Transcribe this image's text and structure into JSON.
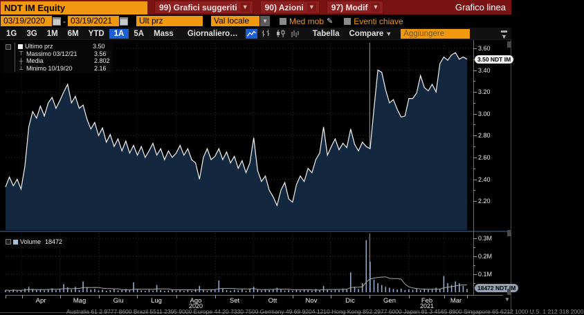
{
  "header": {
    "security": "NDT IM Equity",
    "menus": [
      {
        "label": "99) Grafici suggeriti"
      },
      {
        "label": "90) Azioni"
      },
      {
        "label": "97) Modif"
      }
    ],
    "chart_type": "Grafico linea"
  },
  "controls": {
    "date_from": "03/19/2020",
    "date_to": "03/19/2021",
    "field": "Ult prz",
    "currency": "Val locale",
    "mov_avg_label": "Med mob",
    "key_events_label": "Eventi chiave"
  },
  "toolbar": {
    "ranges": [
      "1G",
      "3G",
      "1M",
      "6M",
      "YTD",
      "1A",
      "5A",
      "Mass"
    ],
    "selected_range": "1A",
    "period": "Giornaliero…",
    "table_label": "Tabella",
    "compare_label": "Compare",
    "add_placeholder": "Aggiungere"
  },
  "legend": {
    "items": [
      {
        "marker": "square",
        "label": "Ultimo prz",
        "value": "3.50"
      },
      {
        "marker": "high",
        "label": "Massimo 03/12/21",
        "value": "3.56"
      },
      {
        "marker": "avg",
        "label": "Media",
        "value": "2.802"
      },
      {
        "marker": "low",
        "label": "Minimo 10/19/20",
        "value": "2.16"
      }
    ]
  },
  "volume_legend": {
    "label": "Volume",
    "value": "18472"
  },
  "price_axis": {
    "last_label": "3.50 NDT IM"
  },
  "volume_axis": {
    "tick_labels": [
      "0.3M",
      "0.2M",
      "0.1M"
    ],
    "last_label": "18472 NDT IM"
  },
  "footer": {
    "text": "Australia 61 2 9777 8600 Brazil 5511 2395 9000 Europe 44 20 7330 7500 Germany 49 69 9204 1210 Hong Kong 852 2977 6000 Japan 81 3 4565 8900 Singapore 65 6212 1000 U.S. 1 212 318 2000"
  },
  "colors": {
    "header_red": "#7a1414",
    "button_red": "#8c1f1f",
    "amber": "#f0980f",
    "selected_blue": "#1d5fd2",
    "area_fill": "#13273f",
    "price_line": "#f5f5f5",
    "volume_bar": "#8fabd0",
    "volume_ma": "#a8a8a8",
    "grid": "#323232",
    "year_line": "#9a9a9a"
  },
  "chart_data": {
    "type": "line",
    "title": "NDT IM Equity — Grafico linea (1A, Giornaliero)",
    "x_range": [
      "03/19/2020",
      "03/19/2021"
    ],
    "price_axis": {
      "min": 2.0,
      "max": 3.65,
      "major_ticks": [
        3.6,
        3.4,
        3.2,
        3.0,
        2.8,
        2.6,
        2.4,
        2.2
      ],
      "minor_step": 0.1
    },
    "volume_axis": {
      "min": 0,
      "max": 0.32,
      "major_ticks_m": [
        0.3,
        0.2,
        0.1
      ],
      "minor_ticks_m": [
        0.05,
        0.15,
        0.25
      ]
    },
    "stats": {
      "last": 3.5,
      "high_date": "03/12/21",
      "high": 3.56,
      "mean": 2.802,
      "low_date": "10/19/20",
      "low": 2.16,
      "last_volume": 18472
    },
    "months": [
      "Apr",
      "Mag",
      "Giu",
      "Lug",
      "Ago",
      "Set",
      "Ott",
      "Nov",
      "Dic",
      "Gen",
      "Feb",
      "Mar"
    ],
    "month_start_days": [
      13,
      43,
      74,
      104,
      135,
      166,
      196,
      227,
      257,
      288,
      319,
      347
    ],
    "days_total": 365,
    "year_separator_day": 288,
    "year_markers": [
      {
        "label": "2020",
        "month_index": 4
      },
      {
        "label": "2021",
        "month_index": 10
      }
    ],
    "price": [
      2.33,
      2.42,
      2.34,
      2.4,
      2.31,
      2.52,
      2.88,
      3.02,
      2.96,
      3.07,
      2.98,
      3.1,
      3.15,
      3.05,
      3.12,
      3.2,
      3.27,
      3.1,
      3.16,
      3.05,
      3.08,
      2.95,
      2.86,
      2.92,
      2.8,
      2.87,
      2.74,
      2.81,
      2.7,
      2.77,
      2.66,
      2.75,
      2.64,
      2.71,
      2.62,
      2.7,
      2.6,
      2.66,
      2.73,
      2.62,
      2.68,
      2.58,
      2.66,
      2.6,
      2.64,
      2.71,
      2.62,
      2.68,
      2.58,
      2.55,
      2.4,
      2.6,
      2.68,
      2.58,
      2.61,
      2.68,
      2.58,
      2.65,
      2.55,
      2.61,
      2.5,
      2.57,
      2.46,
      2.55,
      2.78,
      2.48,
      2.38,
      2.43,
      2.3,
      2.24,
      2.16,
      2.3,
      2.37,
      2.22,
      2.19,
      2.35,
      2.43,
      2.38,
      2.5,
      2.46,
      2.58,
      2.64,
      2.88,
      2.62,
      2.7,
      2.77,
      2.67,
      2.73,
      2.69,
      2.86,
      2.72,
      2.66,
      2.74,
      2.7,
      2.68,
      3.05,
      3.4,
      3.38,
      3.22,
      3.1,
      3.13,
      3.04,
      2.97,
      2.98,
      3.14,
      3.14,
      3.19,
      3.35,
      3.24,
      3.21,
      3.27,
      3.2,
      3.46,
      3.52,
      3.49,
      3.54,
      3.56,
      3.5,
      3.52,
      3.5
    ],
    "volume_m": [
      0.012,
      0.008,
      0.015,
      0.007,
      0.01,
      0.02,
      0.03,
      0.018,
      0.012,
      0.016,
      0.01,
      0.014,
      0.022,
      0.012,
      0.018,
      0.045,
      0.028,
      0.015,
      0.03,
      0.012,
      0.06,
      0.025,
      0.015,
      0.018,
      0.01,
      0.014,
      0.008,
      0.012,
      0.016,
      0.01,
      0.012,
      0.018,
      0.01,
      0.055,
      0.014,
      0.01,
      0.008,
      0.013,
      0.009,
      0.04,
      0.012,
      0.008,
      0.01,
      0.015,
      0.009,
      0.011,
      0.007,
      0.013,
      0.008,
      0.018,
      0.035,
      0.014,
      0.008,
      0.011,
      0.016,
      0.065,
      0.02,
      0.012,
      0.009,
      0.014,
      0.01,
      0.015,
      0.008,
      0.02,
      0.03,
      0.014,
      0.01,
      0.016,
      0.012,
      0.018,
      0.025,
      0.015,
      0.01,
      0.012,
      0.008,
      0.014,
      0.01,
      0.016,
      0.011,
      0.009,
      0.018,
      0.012,
      0.035,
      0.014,
      0.01,
      0.016,
      0.012,
      0.02,
      0.015,
      0.11,
      0.03,
      0.018,
      0.05,
      0.29,
      0.17,
      0.07,
      0.05,
      0.04,
      0.03,
      0.025,
      0.018,
      0.015,
      0.02,
      0.012,
      0.016,
      0.014,
      0.018,
      0.012,
      0.02,
      0.015,
      0.018,
      0.025,
      0.02,
      0.09,
      0.05,
      0.04,
      0.06,
      0.05,
      0.035,
      0.018
    ],
    "volume_ma_window": 10
  }
}
